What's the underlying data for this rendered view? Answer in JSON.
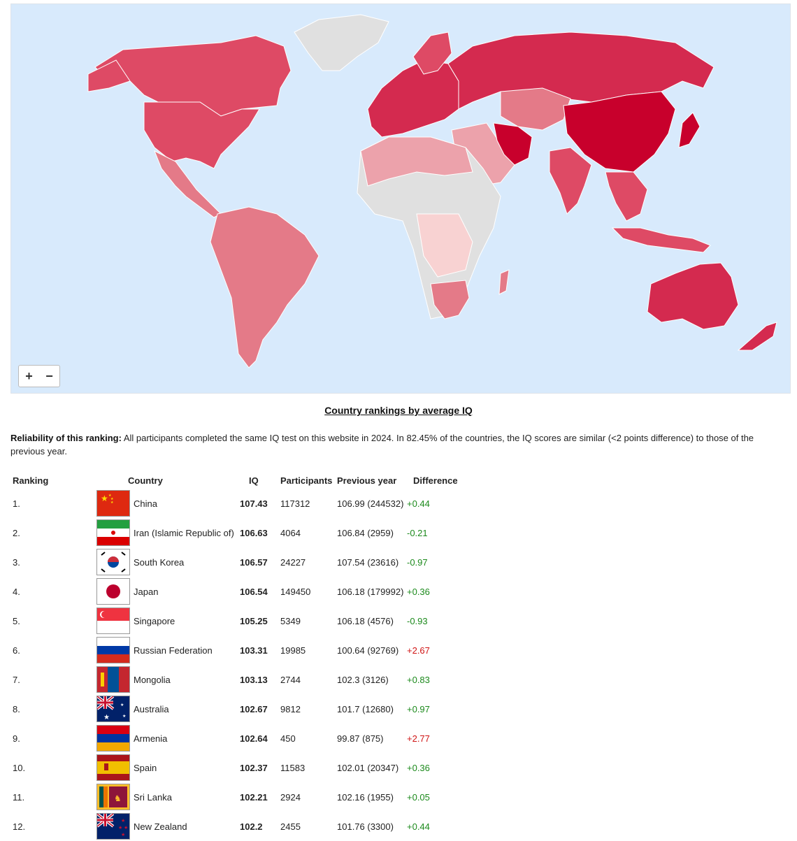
{
  "map": {
    "zoom_in": "+",
    "zoom_out": "−",
    "colors": {
      "ocean": "#d8eafc",
      "dark": "#c8002c",
      "high": "#d42a4f",
      "mid": "#de4a65",
      "midlow": "#e47a88",
      "low": "#eca2ab",
      "lowest": "#f8d2d2",
      "nodata": "#e0e0e0"
    }
  },
  "title": "Country rankings by average IQ",
  "note": {
    "label": "Reliability of this ranking:",
    "text": "All participants completed the same IQ test on this website in 2024. In 82.45% of the countries, the IQ scores are similar (<2 points difference) to those of the previous year."
  },
  "table": {
    "headers": {
      "ranking": "Ranking",
      "country": "Country",
      "iq": "IQ",
      "participants": "Participants",
      "previous": "Previous year",
      "difference": "Difference"
    },
    "rows": [
      {
        "rank": "1.",
        "flag": "china-flag-icon",
        "country": "China",
        "iq": "107.43",
        "participants": "117312",
        "previous": "106.99 (244532)",
        "difference": "+0.44",
        "color": "#1c8a1c"
      },
      {
        "rank": "2.",
        "flag": "iran-flag-icon",
        "country": "Iran (Islamic Republic of)",
        "iq": "106.63",
        "participants": "4064",
        "previous": "106.84 (2959)",
        "difference": "-0.21",
        "color": "#1c8a1c"
      },
      {
        "rank": "3.",
        "flag": "south-korea-flag-icon",
        "country": "South Korea",
        "iq": "106.57",
        "participants": "24227",
        "previous": "107.54 (23616)",
        "difference": "-0.97",
        "color": "#1c8a1c"
      },
      {
        "rank": "4.",
        "flag": "japan-flag-icon",
        "country": "Japan",
        "iq": "106.54",
        "participants": "149450",
        "previous": "106.18 (179992)",
        "difference": "+0.36",
        "color": "#1c8a1c"
      },
      {
        "rank": "5.",
        "flag": "singapore-flag-icon",
        "country": "Singapore",
        "iq": "105.25",
        "participants": "5349",
        "previous": "106.18 (4576)",
        "difference": "-0.93",
        "color": "#1c8a1c"
      },
      {
        "rank": "6.",
        "flag": "russia-flag-icon",
        "country": "Russian Federation",
        "iq": "103.31",
        "participants": "19985",
        "previous": "100.64 (92769)",
        "difference": "+2.67",
        "color": "#d01515"
      },
      {
        "rank": "7.",
        "flag": "mongolia-flag-icon",
        "country": "Mongolia",
        "iq": "103.13",
        "participants": "2744",
        "previous": "102.3 (3126)",
        "difference": "+0.83",
        "color": "#1c8a1c"
      },
      {
        "rank": "8.",
        "flag": "australia-flag-icon",
        "country": "Australia",
        "iq": "102.67",
        "participants": "9812",
        "previous": "101.7 (12680)",
        "difference": "+0.97",
        "color": "#1c8a1c"
      },
      {
        "rank": "9.",
        "flag": "armenia-flag-icon",
        "country": "Armenia",
        "iq": "102.64",
        "participants": "450",
        "previous": "99.87 (875)",
        "difference": "+2.77",
        "color": "#d01515"
      },
      {
        "rank": "10.",
        "flag": "spain-flag-icon",
        "country": "Spain",
        "iq": "102.37",
        "participants": "11583",
        "previous": "102.01 (20347)",
        "difference": "+0.36",
        "color": "#1c8a1c"
      },
      {
        "rank": "11.",
        "flag": "sri-lanka-flag-icon",
        "country": "Sri Lanka",
        "iq": "102.21",
        "participants": "2924",
        "previous": "102.16 (1955)",
        "difference": "+0.05",
        "color": "#1c8a1c"
      },
      {
        "rank": "12.",
        "flag": "new-zealand-flag-icon",
        "country": "New Zealand",
        "iq": "102.2",
        "participants": "2455",
        "previous": "101.76 (3300)",
        "difference": "+0.44",
        "color": "#1c8a1c"
      }
    ]
  }
}
